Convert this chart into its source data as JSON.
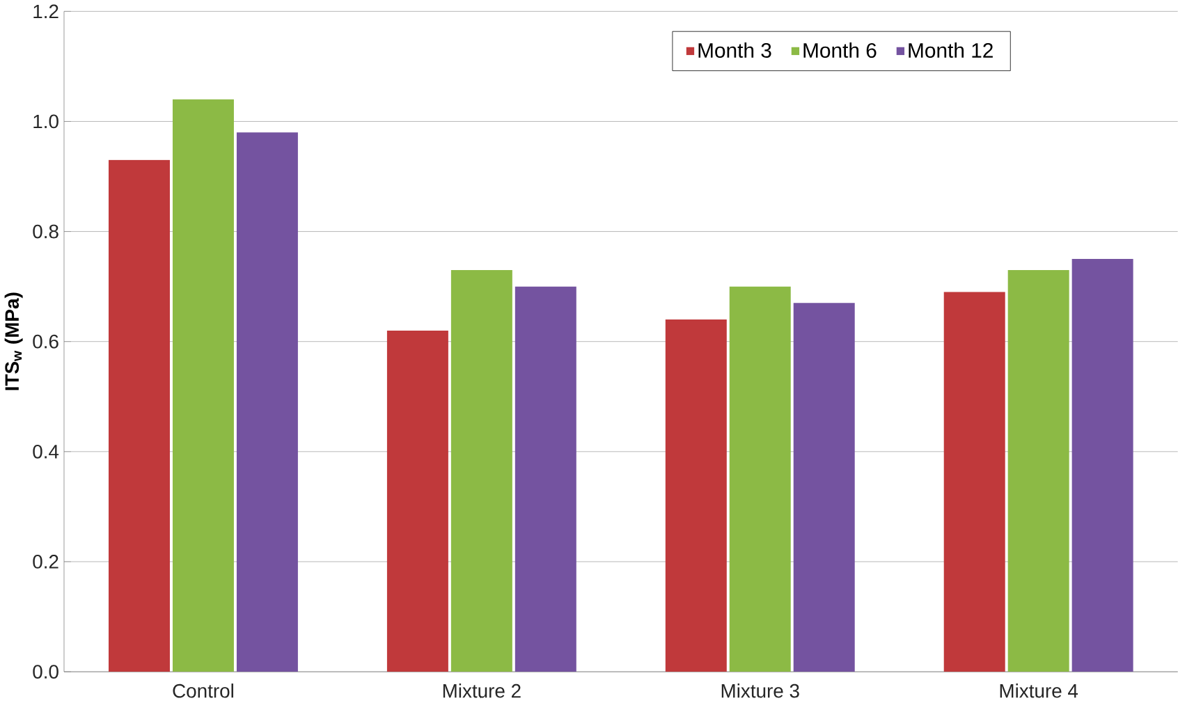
{
  "chart_data": {
    "type": "bar",
    "ylabel": "ITS$_{w}$ (MPa)",
    "categories": [
      "Control",
      "Mixture 2",
      "Mixture 3",
      "Mixture 4"
    ],
    "series": [
      {
        "name": "Month 3",
        "color": "#c0393b",
        "values": [
          0.93,
          0.62,
          0.64,
          0.69
        ]
      },
      {
        "name": "Month 6",
        "color": "#8cba45",
        "values": [
          1.04,
          0.73,
          0.7,
          0.73
        ]
      },
      {
        "name": "Month 12",
        "color": "#7453a0",
        "values": [
          0.98,
          0.7,
          0.67,
          0.75
        ]
      }
    ],
    "ylim": [
      0,
      1.2
    ],
    "yticks": [
      {
        "value": 0,
        "label": "0.0"
      },
      0.2,
      0.4,
      0.6,
      0.8,
      {
        "value": 1,
        "label": "1.0"
      },
      1.2
    ],
    "grid": "y",
    "legend": "top right"
  }
}
